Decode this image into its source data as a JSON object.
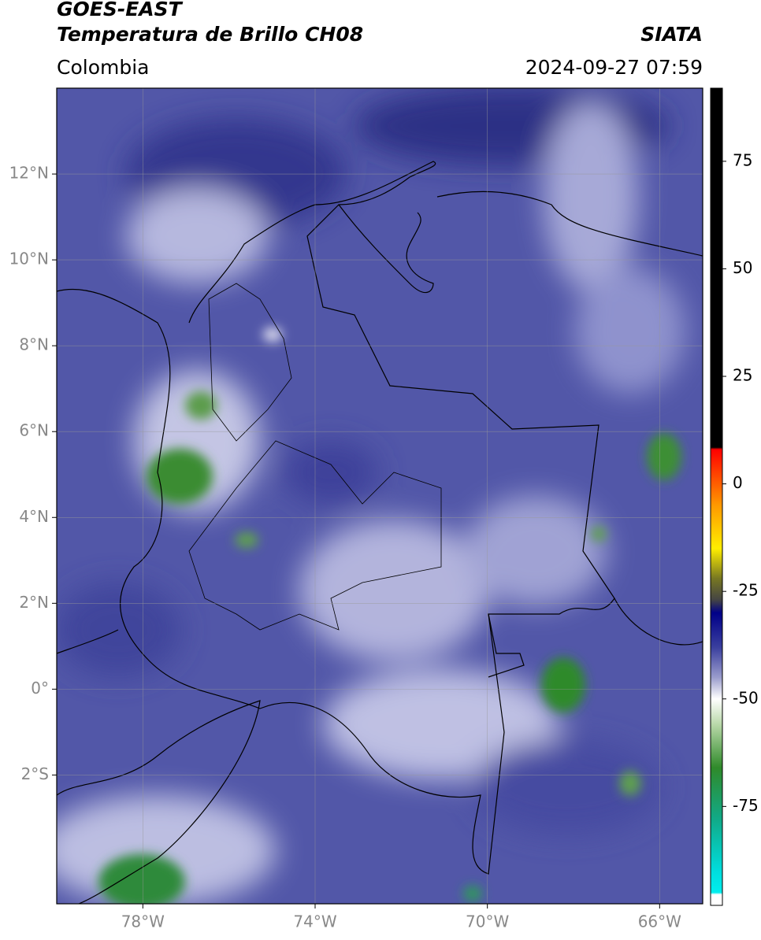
{
  "header": {
    "title": "GOES-EAST",
    "subtitle": "Temperatura de Brillo CH08",
    "region": "Colombia",
    "source": "SIATA",
    "datetime": "2024-09-27 07:59"
  },
  "map": {
    "xlim": [
      -80,
      -65
    ],
    "ylim": [
      -5,
      14
    ],
    "xticks": [
      {
        "value": -78,
        "label": "78°W"
      },
      {
        "value": -74,
        "label": "74°W"
      },
      {
        "value": -70,
        "label": "70°W"
      },
      {
        "value": -66,
        "label": "66°W"
      }
    ],
    "yticks": [
      {
        "value": 12,
        "label": "12°N"
      },
      {
        "value": 10,
        "label": "10°N"
      },
      {
        "value": 8,
        "label": "8°N"
      },
      {
        "value": 6,
        "label": "6°N"
      },
      {
        "value": 4,
        "label": "4°N"
      },
      {
        "value": 2,
        "label": "2°N"
      },
      {
        "value": 0,
        "label": "0°"
      },
      {
        "value": -2,
        "label": "2°S"
      }
    ],
    "grid": true
  },
  "colorbar": {
    "lim": [
      -98,
      92
    ],
    "ticks": [
      75,
      50,
      25,
      0,
      -25,
      -50,
      -75
    ],
    "stops": [
      {
        "value": 92,
        "color": "#000000"
      },
      {
        "value": 8.5,
        "color": "#000000"
      },
      {
        "value": 8,
        "color": "#ff0000"
      },
      {
        "value": -5,
        "color": "#ff9900"
      },
      {
        "value": -15,
        "color": "#ffee00"
      },
      {
        "value": -22,
        "color": "#777722"
      },
      {
        "value": -27,
        "color": "#444444"
      },
      {
        "value": -30,
        "color": "#000088"
      },
      {
        "value": -38,
        "color": "#3a3f9e"
      },
      {
        "value": -45,
        "color": "#9a9ccc"
      },
      {
        "value": -50,
        "color": "#ffffff"
      },
      {
        "value": -56,
        "color": "#b8d8a8"
      },
      {
        "value": -66,
        "color": "#2f8a2a"
      },
      {
        "value": -78,
        "color": "#11aa88"
      },
      {
        "value": -90,
        "color": "#00dddd"
      },
      {
        "value": -95,
        "color": "#00eeee"
      },
      {
        "value": -95.5,
        "color": "#ffffff"
      },
      {
        "value": -98,
        "color": "#ffffff"
      }
    ]
  }
}
